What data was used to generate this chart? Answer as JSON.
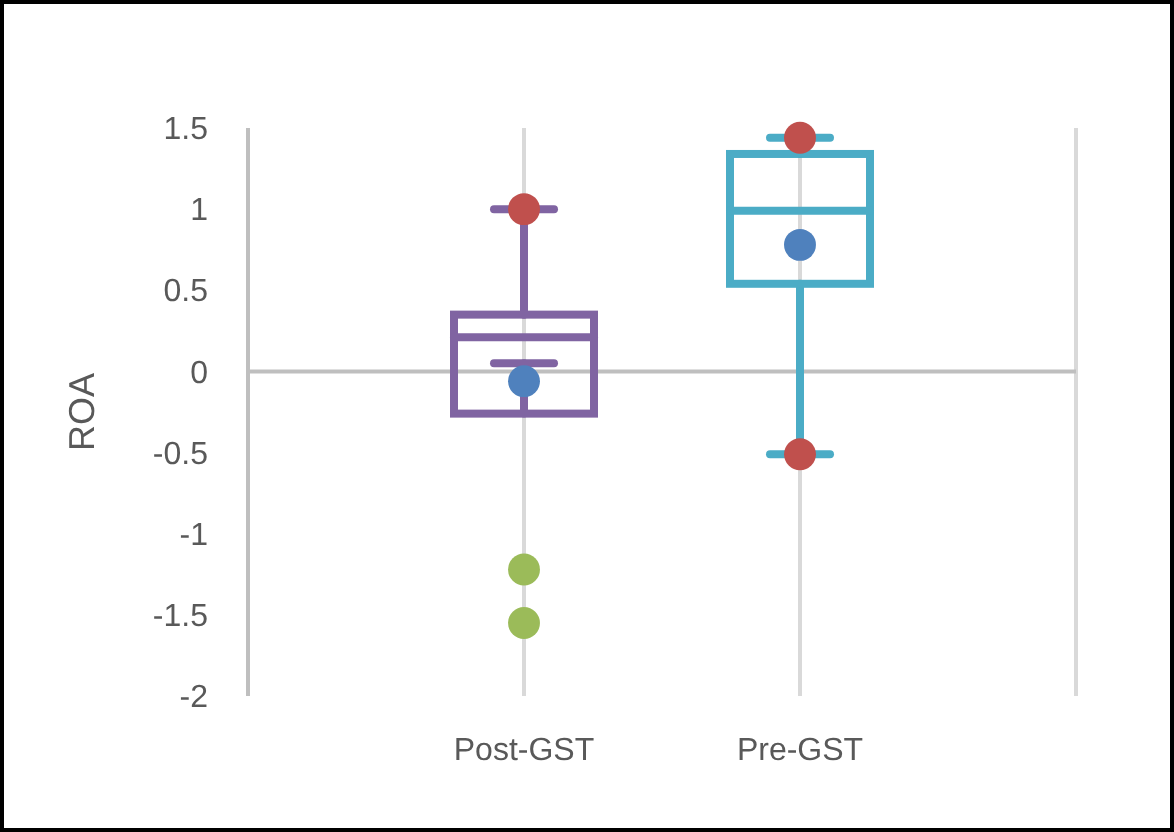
{
  "chart_data": {
    "type": "box",
    "categories": [
      "Post-GST",
      "Pre-GST"
    ],
    "ylabel": "ROA",
    "ylim": [
      -2,
      1.5
    ],
    "yticks": [
      -2,
      -1.5,
      -1,
      -0.5,
      0,
      0.5,
      1,
      1.5
    ],
    "grid": "x",
    "marker": "circle",
    "series": [
      {
        "colors": [
          "#8064a2",
          "#4bacc6"
        ],
        "boxes": [
          {
            "low": 0.05,
            "q1": -0.26,
            "median": 0.21,
            "q3": 0.35,
            "high": 1.0
          },
          {
            "low": -0.51,
            "q1": 0.54,
            "median": 0.99,
            "q3": 1.34,
            "high": 1.44
          }
        ]
      },
      {
        "type": "scatter",
        "color": "#c0504d",
        "x": [
          "Post-GST",
          "Pre-GST",
          "Pre-GST"
        ],
        "values": [
          1.0,
          1.44,
          -0.51
        ]
      },
      {
        "type": "scatter",
        "color": "#4f81bd",
        "x": [
          "Post-GST",
          "Pre-GST"
        ],
        "values": [
          -0.06,
          0.78
        ]
      },
      {
        "type": "scatter",
        "color": "#9bbb59",
        "x": [
          "Post-GST",
          "Post-GST"
        ],
        "values": [
          -1.22,
          -1.55
        ]
      }
    ]
  }
}
